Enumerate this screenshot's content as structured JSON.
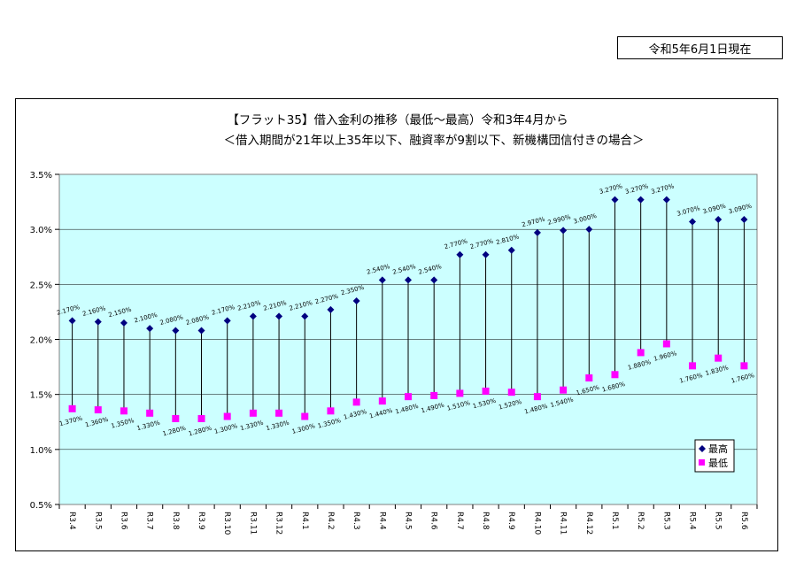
{
  "header": {
    "date_label": "令和5年6月1日現在"
  },
  "chart_data": {
    "type": "line",
    "title": "【フラット35】借入金利の推移（最低～最高）令和3年4月から",
    "subtitle": "＜借入期間が21年以上35年以下、融資率が9割以下、新機構団信付きの場合＞",
    "categories": [
      "R3.4",
      "R3.5",
      "R3.6",
      "R3.7",
      "R3.8",
      "R3.9",
      "R3.10",
      "R3.11",
      "R3.12",
      "R4.1",
      "R4.2",
      "R4.3",
      "R4.4",
      "R4.5",
      "R4.6",
      "R4.7",
      "R4.8",
      "R4.9",
      "R4.10",
      "R4.11",
      "R4.12",
      "R5.1",
      "R5.2",
      "R5.3",
      "R5.4",
      "R5.5",
      "R5.6"
    ],
    "series": [
      {
        "name": "最高",
        "color": "#000080",
        "marker": "diamond",
        "values": [
          2.17,
          2.16,
          2.15,
          2.1,
          2.08,
          2.08,
          2.17,
          2.21,
          2.21,
          2.21,
          2.27,
          2.35,
          2.54,
          2.54,
          2.54,
          2.77,
          2.77,
          2.81,
          2.97,
          2.99,
          3.0,
          3.27,
          3.27,
          3.27,
          3.07,
          3.09,
          3.09
        ],
        "labels": [
          "2.170%",
          "2.160%",
          "2.150%",
          "2.100%",
          "2.080%",
          "2.080%",
          "2.170%",
          "2.210%",
          "2.210%",
          "2.210%",
          "2.270%",
          "2.350%",
          "2.540%",
          "2.540%",
          "2.540%",
          "2.770%",
          "2.770%",
          "2.810%",
          "2.970%",
          "2.990%",
          "3.000%",
          "3.270%",
          "3.270%",
          "3.270%",
          "3.070%",
          "3.090%",
          "3.090%"
        ]
      },
      {
        "name": "最低",
        "color": "#ff00ff",
        "marker": "square",
        "values": [
          1.37,
          1.36,
          1.35,
          1.33,
          1.28,
          1.28,
          1.3,
          1.33,
          1.33,
          1.3,
          1.35,
          1.43,
          1.44,
          1.48,
          1.49,
          1.51,
          1.53,
          1.52,
          1.48,
          1.54,
          1.65,
          1.68,
          1.88,
          1.96,
          1.76,
          1.83,
          1.76
        ],
        "labels": [
          "1.370%",
          "1.360%",
          "1.350%",
          "1.330%",
          "1.280%",
          "1.280%",
          "1.300%",
          "1.330%",
          "1.330%",
          "1.300%",
          "1.350%",
          "1.430%",
          "1.440%",
          "1.480%",
          "1.490%",
          "1.510%",
          "1.530%",
          "1.520%",
          "1.480%",
          "1.540%",
          "1.650%",
          "1.680%",
          "1.880%",
          "1.960%",
          "1.760%",
          "1.830%",
          "1.760%"
        ]
      }
    ],
    "ylim": [
      0.5,
      3.5
    ],
    "yticks": [
      "0.5%",
      "1.0%",
      "1.5%",
      "2.0%",
      "2.5%",
      "3.0%",
      "3.5%"
    ],
    "ytick_values": [
      0.5,
      1.0,
      1.5,
      2.0,
      2.5,
      3.0,
      3.5
    ],
    "grid": true,
    "plot_background": "#ccffff",
    "legend_position": "bottom-right"
  }
}
